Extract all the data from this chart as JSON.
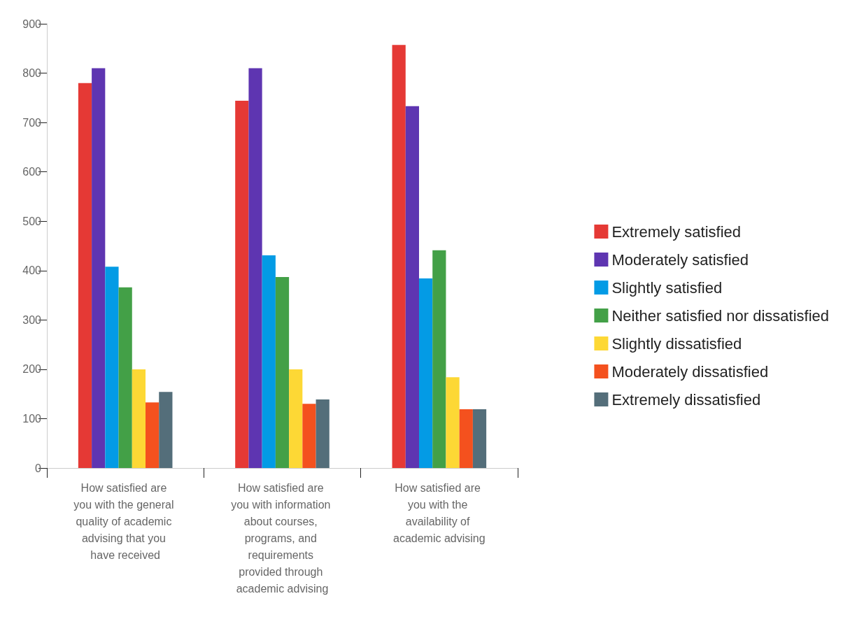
{
  "chart_data": {
    "type": "bar",
    "categories": [
      "How satisfied are you with the general quality of academic advising that you have received",
      "How satisfied are you with information about courses, programs, and requirements provided through academic advising",
      "How satisfied are you with the availability of academic advising"
    ],
    "series": [
      {
        "name": "Extremely satisfied",
        "color": "#e53935",
        "values": [
          780,
          744,
          857
        ]
      },
      {
        "name": "Moderately satisfied",
        "color": "#5e35b1",
        "values": [
          810,
          810,
          733
        ]
      },
      {
        "name": "Slightly satisfied",
        "color": "#039be5",
        "values": [
          408,
          431,
          384
        ]
      },
      {
        "name": "Neither satisfied nor dissatisfied",
        "color": "#43a047",
        "values": [
          366,
          387,
          441
        ]
      },
      {
        "name": "Slightly dissatisfied",
        "color": "#fdd835",
        "values": [
          200,
          200,
          184
        ]
      },
      {
        "name": "Moderately dissatisfied",
        "color": "#f4511e",
        "values": [
          133,
          130,
          119
        ]
      },
      {
        "name": "Extremely dissatisfied",
        "color": "#546e7a",
        "values": [
          154,
          139,
          119
        ]
      }
    ],
    "ylim": [
      0,
      900
    ],
    "yticks": [
      0,
      100,
      200,
      300,
      400,
      500,
      600,
      700,
      800,
      900
    ],
    "grid": false,
    "legend": "right"
  }
}
